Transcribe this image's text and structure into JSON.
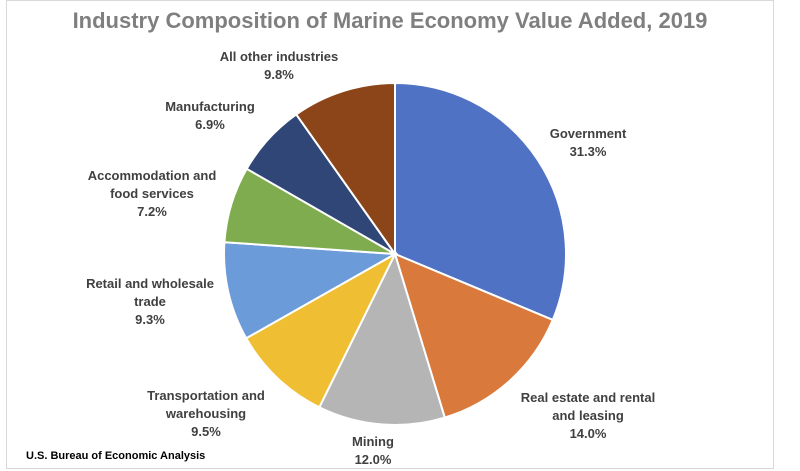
{
  "chart_data": {
    "type": "pie",
    "title": "Industry Composition of Marine Economy Value Added, 2019",
    "unit": "%",
    "slices": [
      {
        "name": "Government",
        "value": 31.3,
        "value_label": "31.3%",
        "color": "#4f72c4"
      },
      {
        "name": "Real estate and rental and leasing",
        "value": 14.0,
        "value_label": "14.0%",
        "color": "#d9793b"
      },
      {
        "name": "Mining",
        "value": 12.0,
        "value_label": "12.0%",
        "color": "#b5b5b5"
      },
      {
        "name": "Transportation and warehousing",
        "value": 9.5,
        "value_label": "9.5%",
        "color": "#f0be32"
      },
      {
        "name": "Retail and wholesale trade",
        "value": 9.3,
        "value_label": "9.3%",
        "color": "#6b9bd8"
      },
      {
        "name": "Accommodation and food services",
        "value": 7.2,
        "value_label": "7.2%",
        "color": "#7fac4e"
      },
      {
        "name": "Manufacturing",
        "value": 6.9,
        "value_label": "6.9%",
        "color": "#2f4677"
      },
      {
        "name": "All other industries",
        "value": 9.8,
        "value_label": "9.8%",
        "color": "#8b4519"
      }
    ]
  },
  "source": "U.S. Bureau of Economic Analysis"
}
